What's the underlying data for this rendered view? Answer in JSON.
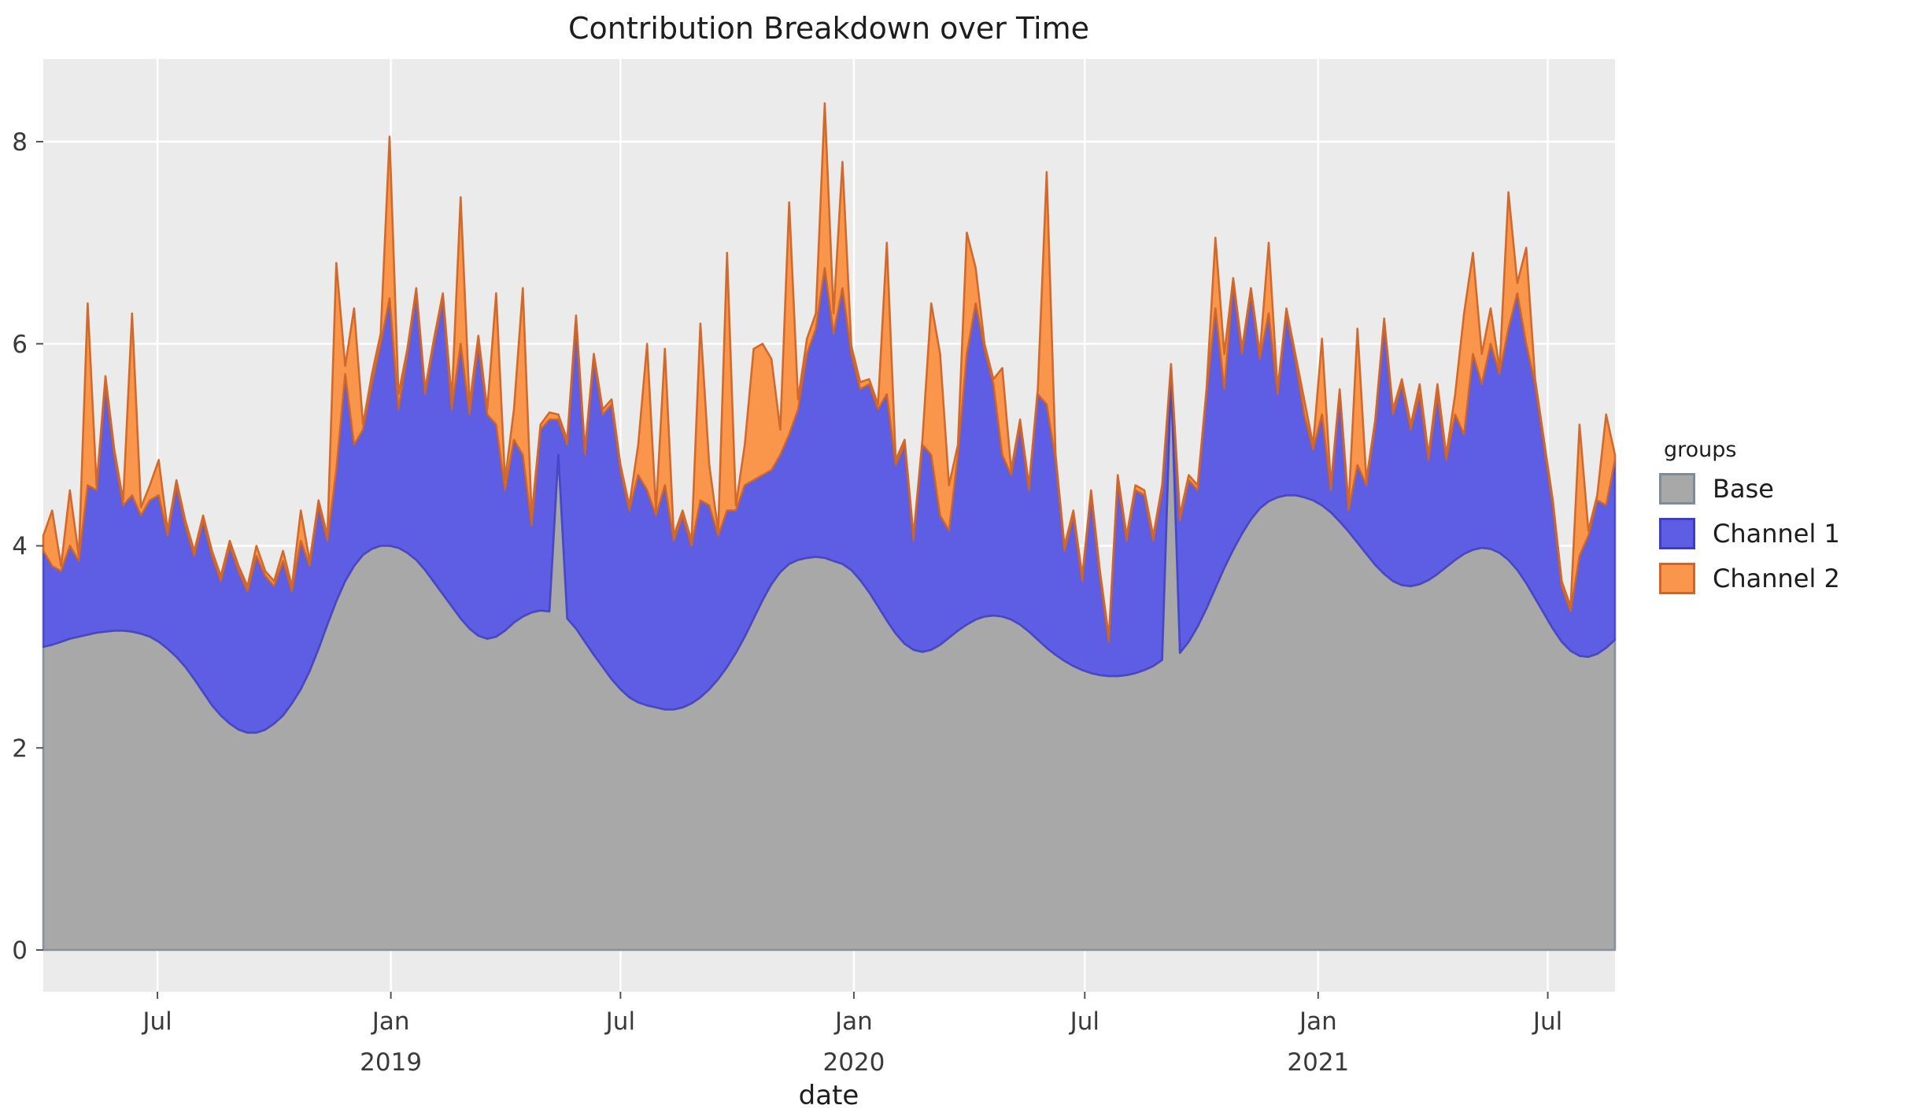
{
  "title": "Contribution Breakdown over Time",
  "axes": {
    "x_label": "date",
    "y_ticks": [
      "0",
      "2",
      "4",
      "6",
      "8"
    ],
    "y_tick_values": [
      0,
      2,
      4,
      6,
      8
    ],
    "x_ticks": [
      {
        "label": "Jul",
        "year": "",
        "date": "2018-07-01"
      },
      {
        "label": "Jan",
        "year": "2019",
        "date": "2019-01-01"
      },
      {
        "label": "Jul",
        "year": "",
        "date": "2019-07-01"
      },
      {
        "label": "Jan",
        "year": "2020",
        "date": "2020-01-01"
      },
      {
        "label": "Jul",
        "year": "",
        "date": "2020-07-01"
      },
      {
        "label": "Jan",
        "year": "2021",
        "date": "2021-01-01"
      },
      {
        "label": "Jul",
        "year": "",
        "date": "2021-07-01"
      }
    ]
  },
  "legend": {
    "title": "groups",
    "items": [
      {
        "label": "Base",
        "fill": "#A8A8A8",
        "stroke": "#7E8C99"
      },
      {
        "label": "Channel 1",
        "fill": "#5E5EE4",
        "stroke": "#3C3CC4"
      },
      {
        "label": "Channel 2",
        "fill": "#F9964B",
        "stroke": "#CF6527"
      }
    ]
  },
  "colors": {
    "panel_bg": "#EBEBEB",
    "grid": "#FFFFFF",
    "figure_bg": "#FFFFFF",
    "text": "#1d1d1d",
    "tick_text": "#3a3a3a"
  },
  "chart_data": {
    "type": "area",
    "stacked": true,
    "title": "Contribution Breakdown over Time",
    "xlabel": "date",
    "ylabel": "",
    "ylim": [
      -0.42,
      8.82
    ],
    "legend_position": "right",
    "grid": true,
    "x": [
      "2018-04-02",
      "2018-04-09",
      "2018-04-16",
      "2018-04-23",
      "2018-04-30",
      "2018-05-07",
      "2018-05-14",
      "2018-05-21",
      "2018-05-28",
      "2018-06-04",
      "2018-06-11",
      "2018-06-18",
      "2018-06-25",
      "2018-07-02",
      "2018-07-09",
      "2018-07-16",
      "2018-07-23",
      "2018-07-30",
      "2018-08-06",
      "2018-08-13",
      "2018-08-20",
      "2018-08-27",
      "2018-09-03",
      "2018-09-10",
      "2018-09-17",
      "2018-09-24",
      "2018-10-01",
      "2018-10-08",
      "2018-10-15",
      "2018-10-22",
      "2018-10-29",
      "2018-11-05",
      "2018-11-12",
      "2018-11-19",
      "2018-11-26",
      "2018-12-03",
      "2018-12-10",
      "2018-12-17",
      "2018-12-24",
      "2018-12-31",
      "2019-01-07",
      "2019-01-14",
      "2019-01-21",
      "2019-01-28",
      "2019-02-04",
      "2019-02-11",
      "2019-02-18",
      "2019-02-25",
      "2019-03-04",
      "2019-03-11",
      "2019-03-18",
      "2019-03-25",
      "2019-04-01",
      "2019-04-08",
      "2019-04-15",
      "2019-04-22",
      "2019-04-29",
      "2019-05-06",
      "2019-05-13",
      "2019-05-20",
      "2019-05-27",
      "2019-06-03",
      "2019-06-10",
      "2019-06-17",
      "2019-06-24",
      "2019-07-01",
      "2019-07-08",
      "2019-07-15",
      "2019-07-22",
      "2019-07-29",
      "2019-08-05",
      "2019-08-12",
      "2019-08-19",
      "2019-08-26",
      "2019-09-02",
      "2019-09-09",
      "2019-09-16",
      "2019-09-23",
      "2019-09-30",
      "2019-10-07",
      "2019-10-14",
      "2019-10-21",
      "2019-10-28",
      "2019-11-04",
      "2019-11-11",
      "2019-11-18",
      "2019-11-25",
      "2019-12-02",
      "2019-12-09",
      "2019-12-16",
      "2019-12-23",
      "2019-12-30",
      "2020-01-06",
      "2020-01-13",
      "2020-01-20",
      "2020-01-27",
      "2020-02-03",
      "2020-02-10",
      "2020-02-17",
      "2020-02-24",
      "2020-03-02",
      "2020-03-09",
      "2020-03-16",
      "2020-03-23",
      "2020-03-30",
      "2020-04-06",
      "2020-04-13",
      "2020-04-20",
      "2020-04-27",
      "2020-05-04",
      "2020-05-11",
      "2020-05-18",
      "2020-05-25",
      "2020-06-01",
      "2020-06-08",
      "2020-06-15",
      "2020-06-22",
      "2020-06-29",
      "2020-07-06",
      "2020-07-13",
      "2020-07-20",
      "2020-07-27",
      "2020-08-03",
      "2020-08-10",
      "2020-08-17",
      "2020-08-24",
      "2020-08-31",
      "2020-09-07",
      "2020-09-14",
      "2020-09-21",
      "2020-09-28",
      "2020-10-05",
      "2020-10-12",
      "2020-10-19",
      "2020-10-26",
      "2020-11-02",
      "2020-11-09",
      "2020-11-16",
      "2020-11-23",
      "2020-11-30",
      "2020-12-07",
      "2020-12-14",
      "2020-12-21",
      "2020-12-28",
      "2021-01-04",
      "2021-01-11",
      "2021-01-18",
      "2021-01-25",
      "2021-02-01",
      "2021-02-08",
      "2021-02-15",
      "2021-02-22",
      "2021-03-01",
      "2021-03-08",
      "2021-03-15",
      "2021-03-22",
      "2021-03-29",
      "2021-04-05",
      "2021-04-12",
      "2021-04-19",
      "2021-04-26",
      "2021-05-03",
      "2021-05-10",
      "2021-05-17",
      "2021-05-24",
      "2021-05-31",
      "2021-06-07",
      "2021-06-14",
      "2021-06-21",
      "2021-06-28",
      "2021-07-05",
      "2021-07-12",
      "2021-07-19",
      "2021-07-26",
      "2021-08-02",
      "2021-08-09",
      "2021-08-16",
      "2021-08-23"
    ],
    "series": [
      {
        "name": "Base",
        "values": [
          3.0,
          3.02,
          3.05,
          3.08,
          3.1,
          3.12,
          3.14,
          3.15,
          3.16,
          3.16,
          3.15,
          3.13,
          3.1,
          3.05,
          2.98,
          2.9,
          2.8,
          2.68,
          2.55,
          2.42,
          2.32,
          2.24,
          2.18,
          2.15,
          2.15,
          2.18,
          2.24,
          2.32,
          2.44,
          2.58,
          2.76,
          2.98,
          3.22,
          3.45,
          3.65,
          3.8,
          3.91,
          3.97,
          4.0,
          4.0,
          3.98,
          3.93,
          3.86,
          3.76,
          3.64,
          3.52,
          3.4,
          3.28,
          3.18,
          3.11,
          3.08,
          3.1,
          3.16,
          3.24,
          3.3,
          3.34,
          3.36,
          3.35,
          4.9,
          3.28,
          3.18,
          3.05,
          2.92,
          2.8,
          2.68,
          2.58,
          2.5,
          2.45,
          2.42,
          2.4,
          2.38,
          2.38,
          2.4,
          2.44,
          2.5,
          2.58,
          2.68,
          2.8,
          2.94,
          3.1,
          3.28,
          3.46,
          3.62,
          3.74,
          3.82,
          3.86,
          3.88,
          3.89,
          3.88,
          3.85,
          3.82,
          3.76,
          3.66,
          3.54,
          3.4,
          3.26,
          3.13,
          3.03,
          2.97,
          2.95,
          2.97,
          3.02,
          3.09,
          3.16,
          3.22,
          3.27,
          3.3,
          3.31,
          3.3,
          3.27,
          3.22,
          3.15,
          3.07,
          2.99,
          2.92,
          2.86,
          2.81,
          2.77,
          2.74,
          2.72,
          2.71,
          2.71,
          2.72,
          2.74,
          2.77,
          2.81,
          2.87,
          5.65,
          2.94,
          3.05,
          3.2,
          3.38,
          3.58,
          3.78,
          3.96,
          4.12,
          4.26,
          4.37,
          4.44,
          4.48,
          4.5,
          4.5,
          4.48,
          4.45,
          4.4,
          4.33,
          4.24,
          4.14,
          4.03,
          3.92,
          3.81,
          3.72,
          3.65,
          3.61,
          3.6,
          3.62,
          3.66,
          3.72,
          3.79,
          3.86,
          3.92,
          3.96,
          3.98,
          3.97,
          3.93,
          3.86,
          3.76,
          3.63,
          3.48,
          3.33,
          3.18,
          3.05,
          2.96,
          2.91,
          2.9,
          2.93,
          2.99,
          3.07
        ]
      },
      {
        "name": "Channel 1",
        "values": [
          0.95,
          0.78,
          0.7,
          0.92,
          0.75,
          1.48,
          1.41,
          2.45,
          1.74,
          1.24,
          1.35,
          1.17,
          1.35,
          1.45,
          1.12,
          1.7,
          1.4,
          1.22,
          1.7,
          1.48,
          1.33,
          1.76,
          1.57,
          1.4,
          1.75,
          1.52,
          1.36,
          1.53,
          1.11,
          1.47,
          1.04,
          1.42,
          0.83,
          1.3,
          2.05,
          1.2,
          1.24,
          1.63,
          2.0,
          2.45,
          1.37,
          1.97,
          2.64,
          1.74,
          2.36,
          2.93,
          1.95,
          2.72,
          2.12,
          2.89,
          2.22,
          2.1,
          1.39,
          1.81,
          1.6,
          0.86,
          1.79,
          1.9,
          0.35,
          1.72,
          3.02,
          1.85,
          2.93,
          2.5,
          2.72,
          2.17,
          1.85,
          2.25,
          2.13,
          1.9,
          2.22,
          1.67,
          1.9,
          1.56,
          1.95,
          1.82,
          1.42,
          1.55,
          1.41,
          1.5,
          1.37,
          1.24,
          1.13,
          1.16,
          1.28,
          1.49,
          2.02,
          2.26,
          2.87,
          2.25,
          2.73,
          2.14,
          1.89,
          2.06,
          1.95,
          2.24,
          1.67,
          1.97,
          1.08,
          2.05,
          1.93,
          1.28,
          1.06,
          1.74,
          2.68,
          3.13,
          2.65,
          2.29,
          1.6,
          1.43,
          1.98,
          1.4,
          2.43,
          2.41,
          1.93,
          1.09,
          1.49,
          0.88,
          1.76,
          0.98,
          0.34,
          1.94,
          1.33,
          1.81,
          1.73,
          1.24,
          1.68,
          0.1,
          1.31,
          1.6,
          1.35,
          2.12,
          2.77,
          1.77,
          2.64,
          1.78,
          2.24,
          1.48,
          1.86,
          1.02,
          1.8,
          1.35,
          0.82,
          0.5,
          0.9,
          0.22,
          1.26,
          0.21,
          0.77,
          0.68,
          1.39,
          2.48,
          1.65,
          1.99,
          1.55,
          1.88,
          1.19,
          1.78,
          1.06,
          1.44,
          1.18,
          1.94,
          1.62,
          2.03,
          1.77,
          2.29,
          2.74,
          2.37,
          2.12,
          1.67,
          1.22,
          0.55,
          0.39,
          0.99,
          1.2,
          1.52,
          1.41,
          1.78
        ]
      },
      {
        "name": "Channel 2",
        "values": [
          0.15,
          0.55,
          0.05,
          0.55,
          0.05,
          1.8,
          0.05,
          0.08,
          0.05,
          0.05,
          1.8,
          0.08,
          0.15,
          0.35,
          0.05,
          0.05,
          0.05,
          0.05,
          0.05,
          0.05,
          0.05,
          0.05,
          0.05,
          0.05,
          0.1,
          0.05,
          0.05,
          0.1,
          0.05,
          0.3,
          0.05,
          0.05,
          0.05,
          2.05,
          0.08,
          1.35,
          0.05,
          0.1,
          0.1,
          1.6,
          0.15,
          0.05,
          0.05,
          0.05,
          0.05,
          0.05,
          0.1,
          1.45,
          0.1,
          0.08,
          0.05,
          1.3,
          0.1,
          0.3,
          1.65,
          0.1,
          0.05,
          0.07,
          0.05,
          0.05,
          0.08,
          0.05,
          0.05,
          0.05,
          0.05,
          0.05,
          0.05,
          0.3,
          1.45,
          0.05,
          1.35,
          0.05,
          0.05,
          0.05,
          1.75,
          0.4,
          0.05,
          2.55,
          0.05,
          0.4,
          1.3,
          1.3,
          1.1,
          0.25,
          2.3,
          0.1,
          0.15,
          0.15,
          1.63,
          0.2,
          1.25,
          0.08,
          0.07,
          0.05,
          0.05,
          1.5,
          0.05,
          0.05,
          0.05,
          0.05,
          1.5,
          1.6,
          0.45,
          0.1,
          1.2,
          0.35,
          0.05,
          0.05,
          0.86,
          0.05,
          0.05,
          0.05,
          0.05,
          2.3,
          0.05,
          0.05,
          0.05,
          0.05,
          0.05,
          0.05,
          0.05,
          0.05,
          0.05,
          0.05,
          0.05,
          0.05,
          0.05,
          0.05,
          0.05,
          0.05,
          0.05,
          0.05,
          0.7,
          0.35,
          0.05,
          0.05,
          0.05,
          0.05,
          0.7,
          0.05,
          0.05,
          0.05,
          0.15,
          0.05,
          0.75,
          0.05,
          0.05,
          0.05,
          1.35,
          0.05,
          0.05,
          0.05,
          0.05,
          0.05,
          0.05,
          0.1,
          0.05,
          0.1,
          0.05,
          0.2,
          1.2,
          1.0,
          0.3,
          0.35,
          0.05,
          1.35,
          0.1,
          0.95,
          0.05,
          0.05,
          0.05,
          0.05,
          0.05,
          1.3,
          0.05,
          0.05,
          0.9,
          0.05
        ]
      }
    ]
  }
}
